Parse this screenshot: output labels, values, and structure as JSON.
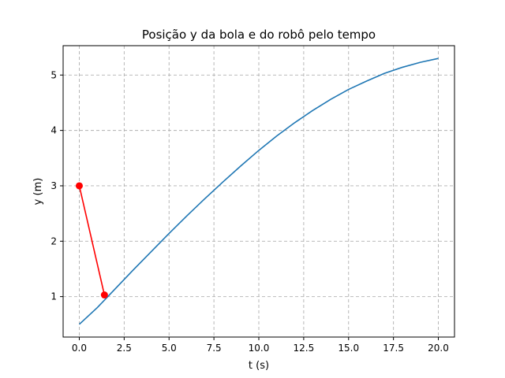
{
  "chart_data": {
    "type": "line",
    "title": "Posição y da bola e do robô pelo tempo",
    "xlabel": "t (s)",
    "ylabel": "y (m)",
    "xlim": [
      -0.9,
      20.9
    ],
    "ylim": [
      0.27,
      5.53
    ],
    "xticks": [
      0.0,
      2.5,
      5.0,
      7.5,
      10.0,
      12.5,
      15.0,
      17.5,
      20.0
    ],
    "xtick_labels": [
      "0.0",
      "2.5",
      "5.0",
      "7.5",
      "10.0",
      "12.5",
      "15.0",
      "17.5",
      "20.0"
    ],
    "yticks": [
      1,
      2,
      3,
      4,
      5
    ],
    "ytick_labels": [
      "1",
      "2",
      "3",
      "4",
      "5"
    ],
    "grid": true,
    "series": [
      {
        "color": "#1f77b4",
        "marker": "none",
        "x": [
          0,
          1,
          2,
          3,
          4,
          5,
          6,
          7,
          8,
          9,
          10,
          11,
          12,
          13,
          14,
          15,
          16,
          17,
          18,
          19,
          20
        ],
        "y": [
          0.5,
          0.8,
          1.14,
          1.48,
          1.81,
          2.14,
          2.46,
          2.77,
          3.07,
          3.36,
          3.64,
          3.9,
          4.14,
          4.36,
          4.56,
          4.74,
          4.89,
          5.03,
          5.14,
          5.23,
          5.3
        ]
      },
      {
        "color": "#ff0000",
        "marker": "circle",
        "x": [
          0.0,
          1.4
        ],
        "y": [
          3.0,
          1.03
        ]
      }
    ]
  }
}
